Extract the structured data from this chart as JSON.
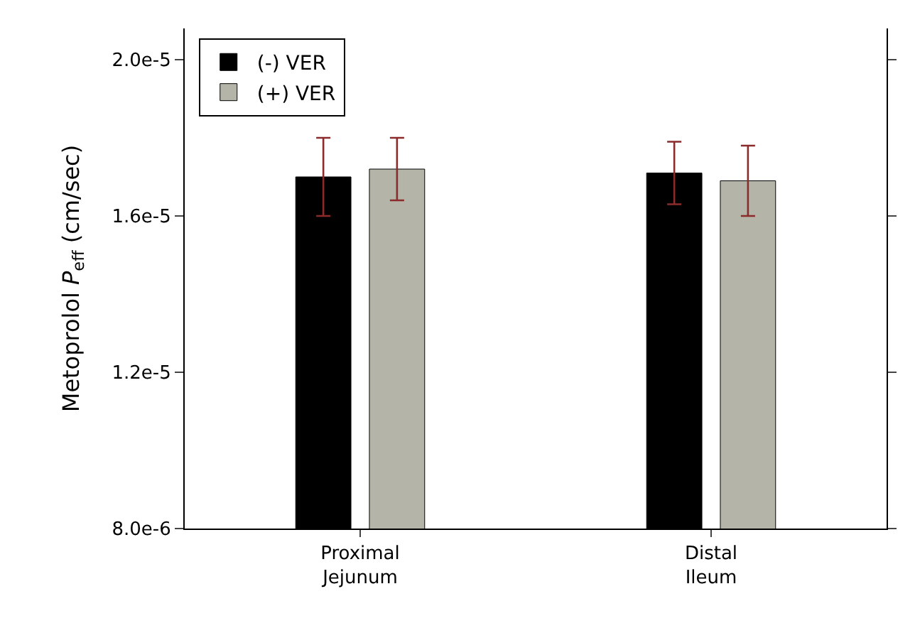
{
  "chart_data": {
    "type": "bar",
    "ylabel": "Metoprolol P$_{eff}$ (cm/sec)",
    "categories": [
      "Proximal\nJejunum",
      "Distal\nIleum"
    ],
    "series": [
      {
        "name": "(-) VER",
        "color": "#000000",
        "values": [
          1.7e-05,
          1.71e-05
        ],
        "errors": [
          1e-06,
          8e-07
        ]
      },
      {
        "name": "(+) VER",
        "color": "#b4b4a8",
        "values": [
          1.72e-05,
          1.69e-05
        ],
        "errors": [
          8e-07,
          9e-07
        ]
      }
    ],
    "ylim": [
      8e-06,
      2.08e-05
    ],
    "yticks": [
      {
        "value": 8e-06,
        "label": "8.0e-6"
      },
      {
        "value": 1.2e-05,
        "label": "1.2e-5"
      },
      {
        "value": 1.6e-05,
        "label": "1.6e-5"
      },
      {
        "value": 2e-05,
        "label": "2.0e-5"
      }
    ],
    "grid": false,
    "legend": "top left"
  }
}
